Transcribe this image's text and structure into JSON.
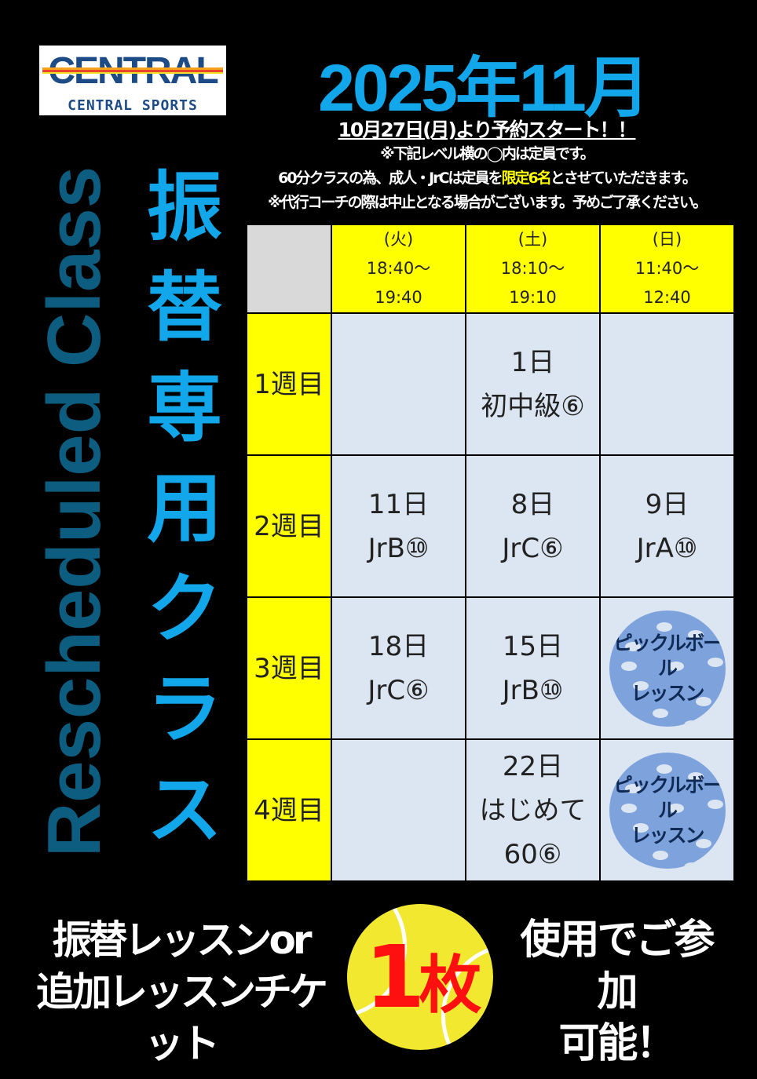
{
  "logo": {
    "main": "CENTRAL",
    "sub": "CENTRAL SPORTS"
  },
  "title": "2025年11月",
  "notes": {
    "start": "10月27日(月)より予約スタート！！",
    "line1": "※下記レベル横の◯内は定員です。",
    "line2_a": "60分クラスの為、成人・JrCは定員を",
    "line2_hl": "限定6名",
    "line2_b": "とさせていただきます。",
    "line3": "※代行コーチの際は中止となる場合がございます。予めご了承ください。"
  },
  "vertical_en": "Rescheduled Class",
  "vertical_jp": [
    "振",
    "替",
    "専",
    "用",
    "ク",
    "ラ",
    "ス"
  ],
  "colors": {
    "title": "#12a6ea",
    "header": "#ffff00",
    "cell": "#dce6f2",
    "accent": "#ffff00",
    "ball": "#f2e830",
    "ticket_count": "#ff1010"
  },
  "table": {
    "columns": [
      {
        "day": "(火)",
        "start": "18:40～",
        "end": "19:40"
      },
      {
        "day": "(土)",
        "start": "18:10～",
        "end": "19:10"
      },
      {
        "day": "(日)",
        "start": "11:40～",
        "end": "12:40"
      }
    ],
    "rows": [
      {
        "week": "1週目",
        "cells": [
          [],
          [
            "1日",
            "初中級⑥"
          ],
          []
        ]
      },
      {
        "week": "2週目",
        "cells": [
          [
            "11日",
            "JrB⑩"
          ],
          [
            "8日",
            "JrC⑥"
          ],
          [
            "9日",
            "JrA⑩"
          ]
        ]
      },
      {
        "week": "3週目",
        "cells": [
          [
            "18日",
            "JrC⑥"
          ],
          [
            "15日",
            "JrB⑩"
          ],
          "pickleball"
        ]
      },
      {
        "week": "4週目",
        "cells": [
          [],
          [
            "22日",
            "はじめて",
            "60⑥"
          ],
          "pickleball"
        ]
      }
    ],
    "pickleball": {
      "line1": "ピックルボール",
      "line2": "レッスン",
      "icon": "pickleball-icon"
    }
  },
  "bottom": {
    "left1": "振替レッスンor",
    "left2": "追加レッスンチケット",
    "count": "1",
    "unit": "枚",
    "right1": "使用でご参加",
    "right2": "可能！"
  }
}
